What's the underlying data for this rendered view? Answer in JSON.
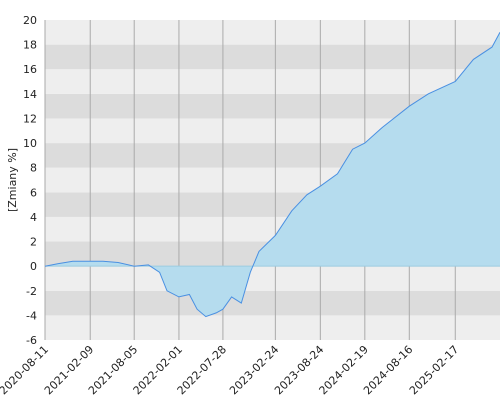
{
  "chart_data": {
    "type": "area",
    "y_label": "[Zmiany %]",
    "x": [
      "2020-08-11",
      "2020-10-01",
      "2020-12-01",
      "2021-02-09",
      "2021-04-01",
      "2021-06-01",
      "2021-08-05",
      "2021-10-01",
      "2021-11-15",
      "2021-12-15",
      "2022-02-01",
      "2022-03-15",
      "2022-04-15",
      "2022-05-20",
      "2022-07-01",
      "2022-07-28",
      "2022-09-01",
      "2022-10-10",
      "2022-11-15",
      "2022-12-20",
      "2023-02-24",
      "2023-05-01",
      "2023-07-01",
      "2023-08-24",
      "2023-11-01",
      "2024-01-01",
      "2024-02-19",
      "2024-05-01",
      "2024-08-16",
      "2024-11-01",
      "2025-02-17",
      "2025-05-01",
      "2025-07-15",
      "2025-08-16"
    ],
    "values": [
      0,
      0.2,
      0.4,
      0.4,
      0.4,
      0.3,
      0,
      0.1,
      -0.5,
      -2,
      -2.5,
      -2.3,
      -3.5,
      -4.1,
      -3.8,
      -3.5,
      -2.5,
      -3,
      -0.5,
      1.2,
      2.5,
      4.5,
      5.8,
      6.5,
      7.5,
      9.5,
      10,
      11.3,
      13,
      14,
      15,
      16.8,
      17.8,
      19
    ],
    "line_color": "#4a90e2",
    "fill_color": "#b5dcee",
    "band_colors": [
      "#eeeeee",
      "#dcdcdc"
    ],
    "xlim": [
      "2020-08-11",
      "2025-08-16"
    ],
    "xticks": [
      "2020-08-11",
      "2021-02-09",
      "2021-08-05",
      "2022-02-01",
      "2022-07-28",
      "2023-02-24",
      "2023-08-24",
      "2024-02-19",
      "2024-08-16",
      "2025-02-17"
    ],
    "ylim": [
      -6,
      20
    ],
    "yticks": [
      -6,
      -4,
      -2,
      0,
      2,
      4,
      6,
      8,
      10,
      12,
      14,
      16,
      18,
      20
    ],
    "grid": true
  }
}
